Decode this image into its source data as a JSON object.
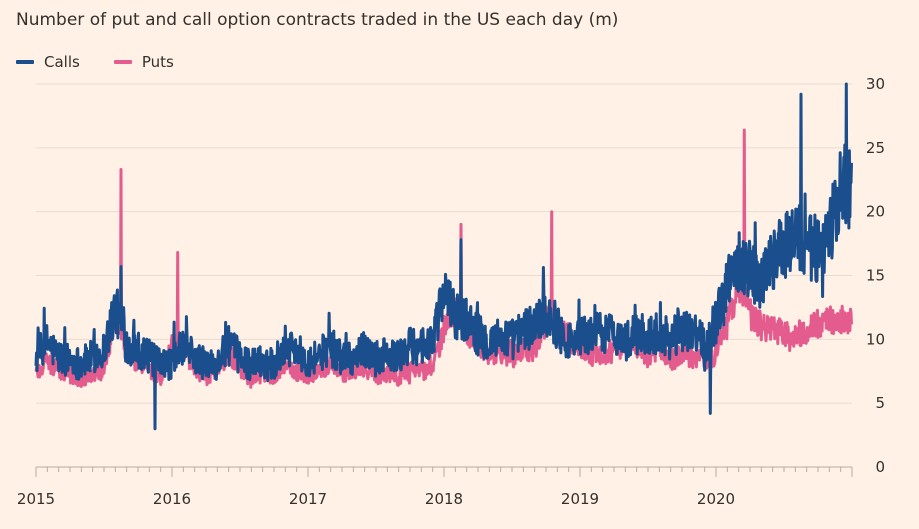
{
  "chart_data": {
    "type": "line",
    "title": "Number of put and call option contracts traded in the US each day (m)",
    "xlabel": "",
    "ylabel": "",
    "x_ticks": [
      "2015",
      "2016",
      "2017",
      "2018",
      "2019",
      "2020"
    ],
    "xlim": [
      "2015-01",
      "2020-12"
    ],
    "ylim": [
      0,
      30
    ],
    "y_ticks": [
      0,
      5,
      10,
      15,
      20,
      25,
      30
    ],
    "grid": true,
    "legend": "top-left",
    "x": [
      "2015-01",
      "2015-02",
      "2015-03",
      "2015-04",
      "2015-05",
      "2015-06",
      "2015-07",
      "2015-08",
      "2015-09",
      "2015-10",
      "2015-11",
      "2015-12",
      "2016-01",
      "2016-02",
      "2016-03",
      "2016-04",
      "2016-05",
      "2016-06",
      "2016-07",
      "2016-08",
      "2016-09",
      "2016-10",
      "2016-11",
      "2016-12",
      "2017-01",
      "2017-02",
      "2017-03",
      "2017-04",
      "2017-05",
      "2017-06",
      "2017-07",
      "2017-08",
      "2017-09",
      "2017-10",
      "2017-11",
      "2017-12",
      "2018-01",
      "2018-02",
      "2018-03",
      "2018-04",
      "2018-05",
      "2018-06",
      "2018-07",
      "2018-08",
      "2018-09",
      "2018-10",
      "2018-11",
      "2018-12",
      "2019-01",
      "2019-02",
      "2019-03",
      "2019-04",
      "2019-05",
      "2019-06",
      "2019-07",
      "2019-08",
      "2019-09",
      "2019-10",
      "2019-11",
      "2019-12",
      "2020-01",
      "2020-02",
      "2020-03",
      "2020-04",
      "2020-05",
      "2020-06",
      "2020-07",
      "2020-08",
      "2020-09",
      "2020-10",
      "2020-11",
      "2020-12"
    ],
    "series": [
      {
        "name": "Calls",
        "color": "#1B4E8C",
        "values": [
          8.5,
          9.8,
          8.6,
          8.4,
          8.1,
          8.6,
          9.2,
          12.5,
          9.6,
          9.2,
          8.6,
          7.9,
          8.2,
          9.5,
          8.6,
          8.0,
          8.2,
          9.5,
          8.6,
          8.0,
          8.3,
          8.2,
          9.6,
          9.0,
          8.4,
          8.8,
          9.4,
          8.6,
          8.6,
          9.2,
          8.4,
          8.8,
          8.6,
          9.4,
          9.6,
          9.8,
          13.5,
          12.0,
          11.4,
          10.4,
          9.8,
          10.2,
          10.0,
          10.6,
          11.2,
          12.2,
          11.0,
          9.8,
          10.2,
          10.4,
          10.5,
          10.6,
          9.8,
          10.4,
          10.2,
          10.6,
          10.0,
          10.4,
          10.6,
          9.6,
          11.5,
          14.0,
          16.5,
          15.5,
          14.6,
          16.2,
          17.0,
          18.5,
          17.2,
          17.0,
          17.8,
          22.0
        ]
      },
      {
        "name": "Puts",
        "color": "#E45C8E",
        "values": [
          7.4,
          8.2,
          7.6,
          7.2,
          7.0,
          7.4,
          7.6,
          12.0,
          9.0,
          8.2,
          7.6,
          7.0,
          9.4,
          8.9,
          7.8,
          7.1,
          7.6,
          9.0,
          7.6,
          7.0,
          7.4,
          7.2,
          8.2,
          7.4,
          7.2,
          7.6,
          8.0,
          7.4,
          7.5,
          7.8,
          7.2,
          7.4,
          7.1,
          7.6,
          7.6,
          7.6,
          10.8,
          12.4,
          10.6,
          9.8,
          8.8,
          9.0,
          8.6,
          9.2,
          9.2,
          11.8,
          10.6,
          10.2,
          9.2,
          8.8,
          9.0,
          9.0,
          9.6,
          9.6,
          8.6,
          9.4,
          8.4,
          8.8,
          8.6,
          8.2,
          8.8,
          11.2,
          14.5,
          12.0,
          11.0,
          10.8,
          10.4,
          10.4,
          10.6,
          11.2,
          11.4,
          11.6
        ]
      }
    ],
    "annotations": [
      {
        "series": "Puts",
        "x": "2015-08",
        "y": 23.3
      },
      {
        "series": "Calls",
        "x": "2015-08",
        "y": 15.7
      },
      {
        "series": "Puts",
        "x": "2016-01",
        "y": 16.8
      },
      {
        "series": "Calls",
        "x": "2015-11",
        "y": 3.0
      },
      {
        "series": "Calls",
        "x": "2018-02",
        "y": 17.8
      },
      {
        "series": "Puts",
        "x": "2018-02",
        "y": 19.0
      },
      {
        "series": "Puts",
        "x": "2018-10",
        "y": 20.0
      },
      {
        "series": "Calls",
        "x": "2019-12",
        "y": 4.2
      },
      {
        "series": "Puts",
        "x": "2020-03",
        "y": 26.4
      },
      {
        "series": "Calls",
        "x": "2020-08",
        "y": 29.2
      },
      {
        "series": "Calls",
        "x": "2020-12",
        "y": 30.0
      }
    ]
  }
}
